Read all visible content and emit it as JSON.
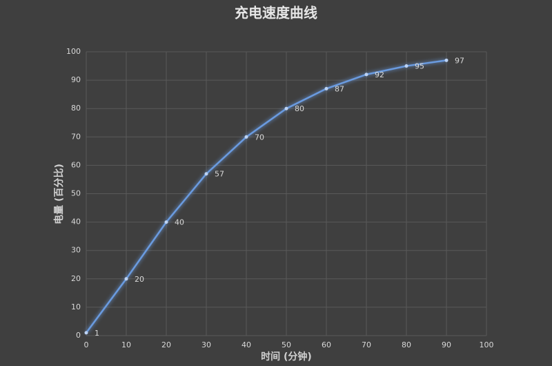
{
  "chart_data": {
    "type": "line",
    "title": "充电速度曲线",
    "x_label": "时间 (分钟)",
    "y_label": "电量 (百分比)",
    "x": [
      0,
      10,
      20,
      30,
      40,
      50,
      60,
      70,
      80,
      90
    ],
    "series": [
      {
        "name": "电量",
        "color": "#6a9be0",
        "values": [
          1,
          20,
          40,
          57,
          70,
          80,
          87,
          92,
          95,
          97
        ]
      }
    ],
    "xlim": [
      0,
      100
    ],
    "xticks": [
      0,
      10,
      20,
      30,
      40,
      50,
      60,
      70,
      80,
      90,
      100
    ],
    "ylim": [
      0,
      100
    ],
    "yticks": [
      0,
      10,
      20,
      30,
      40,
      50,
      60,
      70,
      80,
      90,
      100
    ],
    "grid": true
  }
}
